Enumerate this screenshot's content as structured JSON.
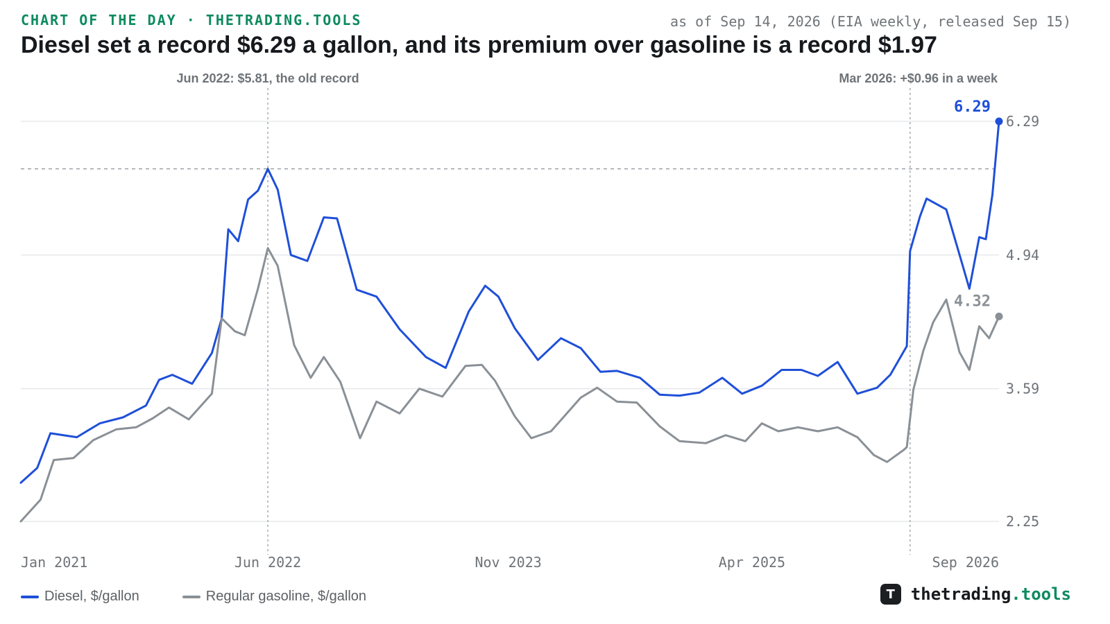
{
  "header": {
    "kicker": "CHART OF THE DAY · THETRADING.TOOLS",
    "as_of": "as of Sep 14, 2026 (EIA weekly, released Sep 15)",
    "title": "Diesel set a record $6.29 a gallon, and its premium over gasoline is a record $1.97"
  },
  "colors": {
    "diesel": "#1f4fd8",
    "gasoline": "#8a9096",
    "grid": "#e6e8eb",
    "axis_text": "#6e7378",
    "kicker": "#0e8a5f"
  },
  "brand": {
    "mark": "T",
    "name": "thetrading",
    "tld": ".tools"
  },
  "chart_data": {
    "type": "line",
    "title": "Diesel set a record $6.29 a gallon, and its premium over gasoline is a record $1.97",
    "xlabel": "",
    "ylabel": "",
    "x_range": [
      "2021-01-04",
      "2026-09-14"
    ],
    "ylim": [
      2.25,
      6.29
    ],
    "yticks": [
      2.25,
      3.59,
      4.94,
      6.29
    ],
    "ytick_labels": [
      "2.25",
      "3.59",
      "4.94",
      "6.29"
    ],
    "xticks": [
      "2021-01-04",
      "2022-06-13",
      "2023-11-06",
      "2025-04-07",
      "2026-09-14"
    ],
    "xtick_labels": [
      "Jan 2021",
      "Jun 2022",
      "Nov 2023",
      "Apr 2025",
      "Sep 2026"
    ],
    "grid": true,
    "legend_position": "bottom-left",
    "reference_line": {
      "value": 5.81,
      "style": "dashed"
    },
    "annotations": [
      {
        "date": "2022-06-13",
        "text": "Jun 2022: $5.81, the old record"
      },
      {
        "date": "2026-03-09",
        "text": "Mar 2026: +$0.96 in a week"
      }
    ],
    "end_labels": {
      "diesel": "6.29",
      "gasoline": "4.32"
    },
    "series": [
      {
        "name": "Diesel, $/gallon",
        "points": [
          [
            "2021-01-04",
            2.64
          ],
          [
            "2021-02-08",
            2.79
          ],
          [
            "2021-03-08",
            3.14
          ],
          [
            "2021-05-03",
            3.1
          ],
          [
            "2021-06-21",
            3.24
          ],
          [
            "2021-08-09",
            3.3
          ],
          [
            "2021-09-27",
            3.42
          ],
          [
            "2021-10-25",
            3.68
          ],
          [
            "2021-11-22",
            3.73
          ],
          [
            "2022-01-03",
            3.64
          ],
          [
            "2022-02-14",
            3.95
          ],
          [
            "2022-03-07",
            4.3
          ],
          [
            "2022-03-21",
            5.2
          ],
          [
            "2022-04-11",
            5.08
          ],
          [
            "2022-05-02",
            5.5
          ],
          [
            "2022-05-23",
            5.59
          ],
          [
            "2022-06-13",
            5.81
          ],
          [
            "2022-07-04",
            5.6
          ],
          [
            "2022-08-01",
            4.94
          ],
          [
            "2022-09-05",
            4.88
          ],
          [
            "2022-10-10",
            5.32
          ],
          [
            "2022-11-07",
            5.31
          ],
          [
            "2022-12-19",
            4.59
          ],
          [
            "2023-01-30",
            4.52
          ],
          [
            "2023-03-20",
            4.19
          ],
          [
            "2023-05-15",
            3.91
          ],
          [
            "2023-06-26",
            3.8
          ],
          [
            "2023-08-14",
            4.37
          ],
          [
            "2023-09-18",
            4.63
          ],
          [
            "2023-10-16",
            4.52
          ],
          [
            "2023-11-20",
            4.2
          ],
          [
            "2024-01-08",
            3.88
          ],
          [
            "2024-02-26",
            4.1
          ],
          [
            "2024-04-08",
            4.0
          ],
          [
            "2024-05-20",
            3.76
          ],
          [
            "2024-06-24",
            3.77
          ],
          [
            "2024-08-12",
            3.7
          ],
          [
            "2024-09-23",
            3.53
          ],
          [
            "2024-11-04",
            3.52
          ],
          [
            "2024-12-16",
            3.55
          ],
          [
            "2025-02-03",
            3.7
          ],
          [
            "2025-03-17",
            3.54
          ],
          [
            "2025-04-28",
            3.62
          ],
          [
            "2025-06-09",
            3.78
          ],
          [
            "2025-07-21",
            3.78
          ],
          [
            "2025-08-25",
            3.72
          ],
          [
            "2025-10-06",
            3.86
          ],
          [
            "2025-11-17",
            3.54
          ],
          [
            "2025-12-29",
            3.6
          ],
          [
            "2026-01-26",
            3.73
          ],
          [
            "2026-03-02",
            4.02
          ],
          [
            "2026-03-09",
            4.98
          ],
          [
            "2026-03-30",
            5.33
          ],
          [
            "2026-04-13",
            5.51
          ],
          [
            "2026-05-25",
            5.4
          ],
          [
            "2026-06-29",
            4.83
          ],
          [
            "2026-07-13",
            4.6
          ],
          [
            "2026-08-03",
            5.12
          ],
          [
            "2026-08-17",
            5.1
          ],
          [
            "2026-08-31",
            5.55
          ],
          [
            "2026-09-14",
            6.29
          ]
        ]
      },
      {
        "name": "Regular gasoline, $/gallon",
        "points": [
          [
            "2021-01-04",
            2.25
          ],
          [
            "2021-02-15",
            2.47
          ],
          [
            "2021-03-15",
            2.87
          ],
          [
            "2021-04-26",
            2.89
          ],
          [
            "2021-06-07",
            3.07
          ],
          [
            "2021-07-26",
            3.18
          ],
          [
            "2021-09-06",
            3.2
          ],
          [
            "2021-10-11",
            3.29
          ],
          [
            "2021-11-15",
            3.4
          ],
          [
            "2021-12-27",
            3.28
          ],
          [
            "2022-02-14",
            3.54
          ],
          [
            "2022-03-07",
            4.3
          ],
          [
            "2022-04-04",
            4.17
          ],
          [
            "2022-04-25",
            4.13
          ],
          [
            "2022-05-23",
            4.6
          ],
          [
            "2022-06-13",
            5.01
          ],
          [
            "2022-07-04",
            4.83
          ],
          [
            "2022-08-08",
            4.03
          ],
          [
            "2022-09-12",
            3.7
          ],
          [
            "2022-10-10",
            3.91
          ],
          [
            "2022-11-14",
            3.66
          ],
          [
            "2022-12-26",
            3.09
          ],
          [
            "2023-01-30",
            3.46
          ],
          [
            "2023-03-20",
            3.34
          ],
          [
            "2023-05-01",
            3.59
          ],
          [
            "2023-06-19",
            3.51
          ],
          [
            "2023-08-07",
            3.82
          ],
          [
            "2023-09-11",
            3.83
          ],
          [
            "2023-10-09",
            3.67
          ],
          [
            "2023-11-20",
            3.31
          ],
          [
            "2023-12-25",
            3.09
          ],
          [
            "2024-02-05",
            3.16
          ],
          [
            "2024-04-08",
            3.5
          ],
          [
            "2024-05-13",
            3.6
          ],
          [
            "2024-06-24",
            3.46
          ],
          [
            "2024-08-05",
            3.45
          ],
          [
            "2024-09-23",
            3.21
          ],
          [
            "2024-11-04",
            3.06
          ],
          [
            "2024-12-30",
            3.04
          ],
          [
            "2025-02-10",
            3.12
          ],
          [
            "2025-03-24",
            3.06
          ],
          [
            "2025-04-28",
            3.24
          ],
          [
            "2025-06-02",
            3.16
          ],
          [
            "2025-07-14",
            3.2
          ],
          [
            "2025-08-25",
            3.16
          ],
          [
            "2025-10-06",
            3.2
          ],
          [
            "2025-11-17",
            3.1
          ],
          [
            "2025-12-22",
            2.92
          ],
          [
            "2026-01-19",
            2.85
          ],
          [
            "2026-02-23",
            2.97
          ],
          [
            "2026-03-02",
            3.0
          ],
          [
            "2026-03-16",
            3.58
          ],
          [
            "2026-04-06",
            3.97
          ],
          [
            "2026-04-27",
            4.26
          ],
          [
            "2026-05-25",
            4.49
          ],
          [
            "2026-06-22",
            3.96
          ],
          [
            "2026-07-13",
            3.78
          ],
          [
            "2026-08-03",
            4.22
          ],
          [
            "2026-08-24",
            4.1
          ],
          [
            "2026-09-14",
            4.32
          ]
        ]
      }
    ]
  }
}
